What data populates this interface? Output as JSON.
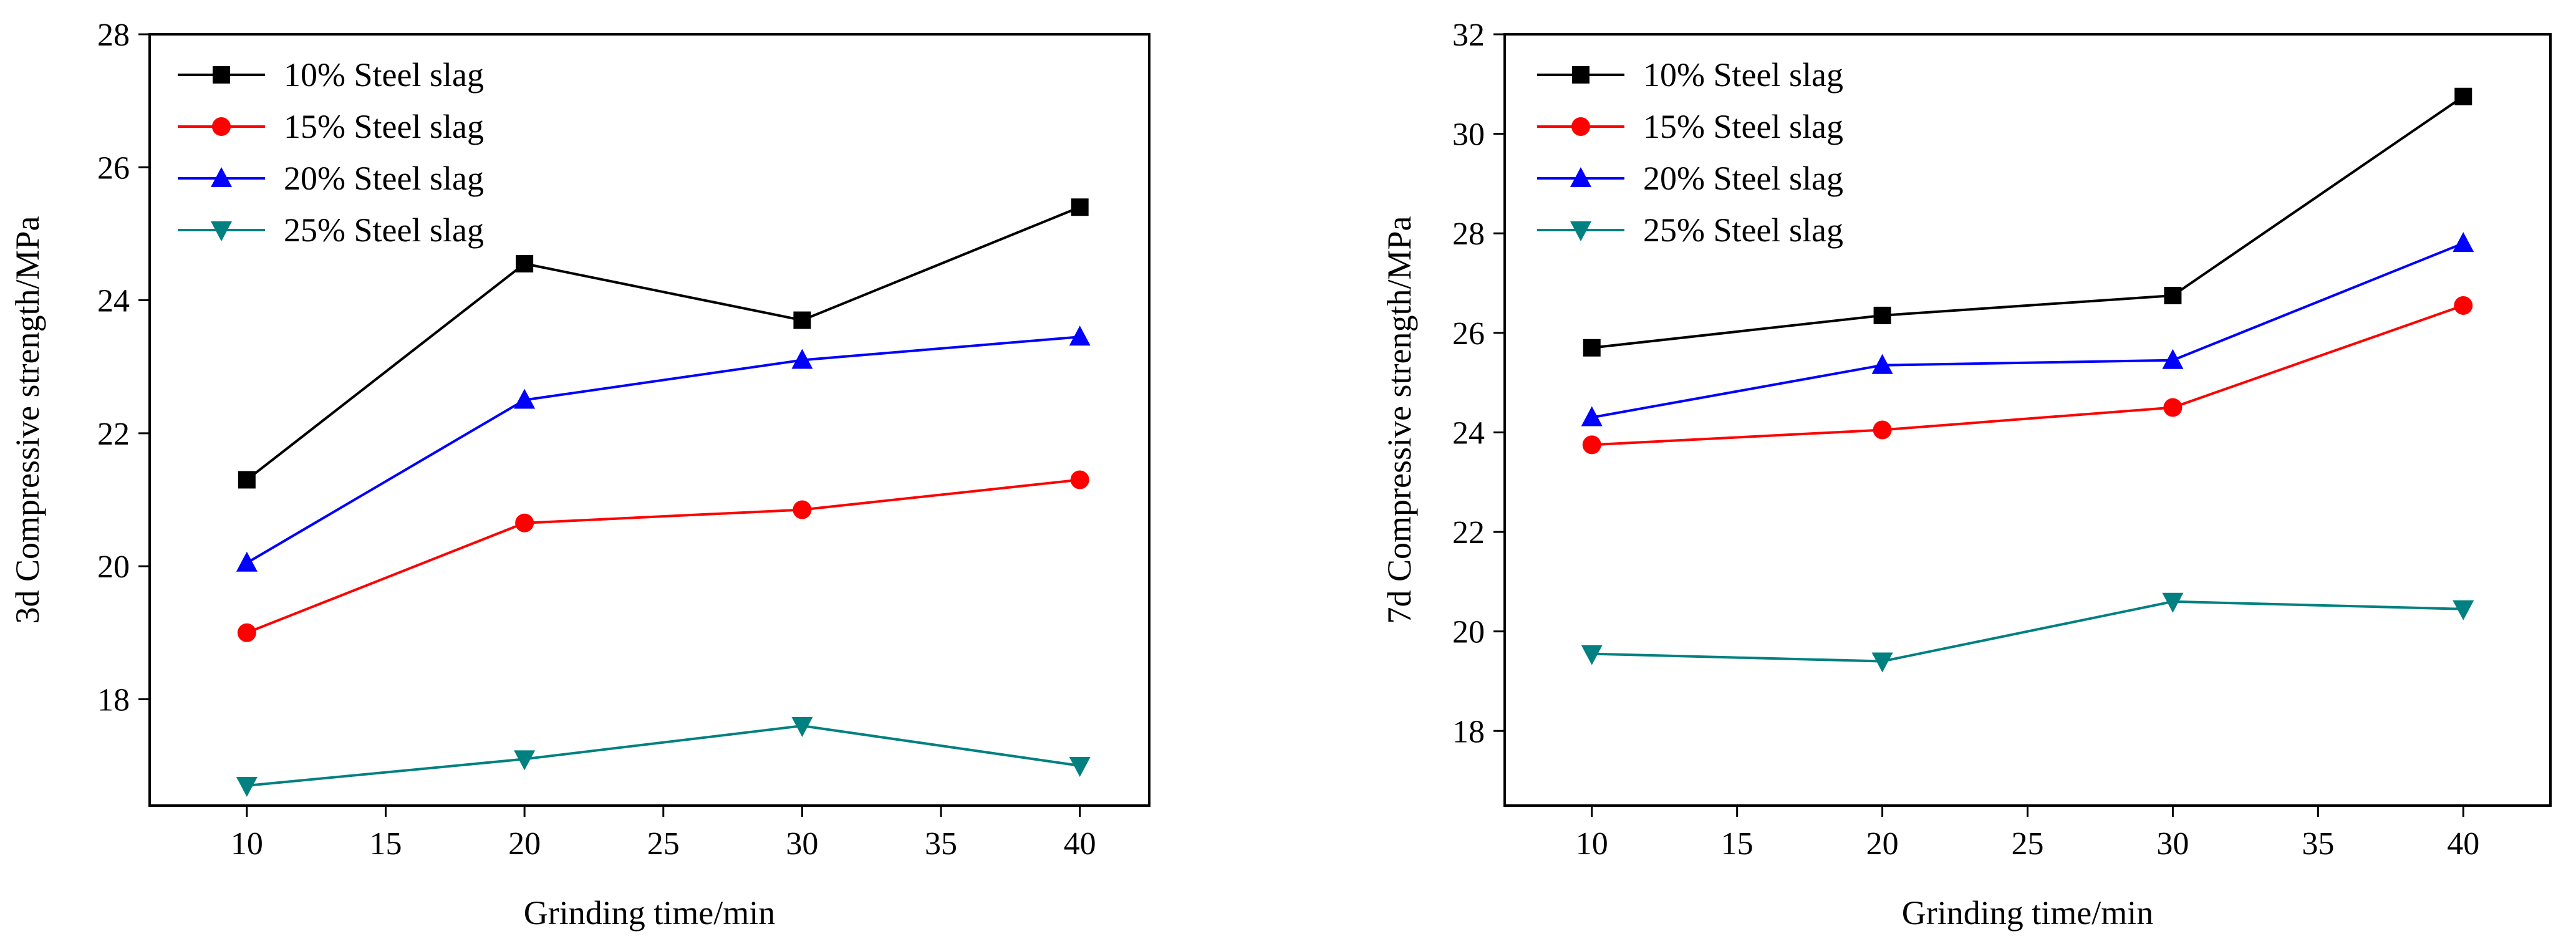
{
  "chart_data": [
    {
      "type": "line",
      "title": "",
      "xlabel": "Grinding time/min",
      "ylabel": "3d Compressive strength/MPa",
      "xlim": [
        6.5,
        42.5
      ],
      "ylim": [
        16.4,
        28
      ],
      "xticks": [
        10,
        15,
        20,
        25,
        30,
        35,
        40
      ],
      "yticks": [
        18,
        20,
        22,
        24,
        26,
        28
      ],
      "grid": false,
      "legend_position": "top-left",
      "x": [
        10,
        20,
        30,
        40
      ],
      "series": [
        {
          "name": "10% Steel slag",
          "color": "#000000",
          "marker": "square",
          "values": [
            21.3,
            24.55,
            23.7,
            25.4
          ]
        },
        {
          "name": "15% Steel slag",
          "color": "#ff0000",
          "marker": "circle",
          "values": [
            19.0,
            20.65,
            20.85,
            21.3
          ]
        },
        {
          "name": "20% Steel slag",
          "color": "#0000ff",
          "marker": "triangle-up",
          "values": [
            20.05,
            22.5,
            23.1,
            23.45
          ]
        },
        {
          "name": "25% Steel slag",
          "color": "#008080",
          "marker": "triangle-down",
          "values": [
            16.7,
            17.1,
            17.6,
            17.0
          ]
        }
      ]
    },
    {
      "type": "line",
      "title": "",
      "xlabel": "Grinding time/min",
      "ylabel": "7d Compressive strength/MPa",
      "xlim": [
        7,
        43
      ],
      "ylim": [
        16.5,
        32
      ],
      "xticks": [
        10,
        15,
        20,
        25,
        30,
        35,
        40
      ],
      "yticks": [
        18,
        20,
        22,
        24,
        26,
        28,
        30,
        32
      ],
      "grid": false,
      "legend_position": "top-left",
      "x": [
        10,
        20,
        30,
        40
      ],
      "series": [
        {
          "name": "10% Steel slag",
          "color": "#000000",
          "marker": "square",
          "values": [
            25.7,
            26.35,
            26.75,
            30.75
          ]
        },
        {
          "name": "15% Steel slag",
          "color": "#ff0000",
          "marker": "circle",
          "values": [
            23.75,
            24.05,
            24.5,
            26.55
          ]
        },
        {
          "name": "20% Steel slag",
          "color": "#0000ff",
          "marker": "triangle-up",
          "values": [
            24.3,
            25.35,
            25.45,
            27.8
          ]
        },
        {
          "name": "25% Steel slag",
          "color": "#008080",
          "marker": "triangle-down",
          "values": [
            19.55,
            19.4,
            20.6,
            20.45
          ]
        }
      ]
    }
  ]
}
